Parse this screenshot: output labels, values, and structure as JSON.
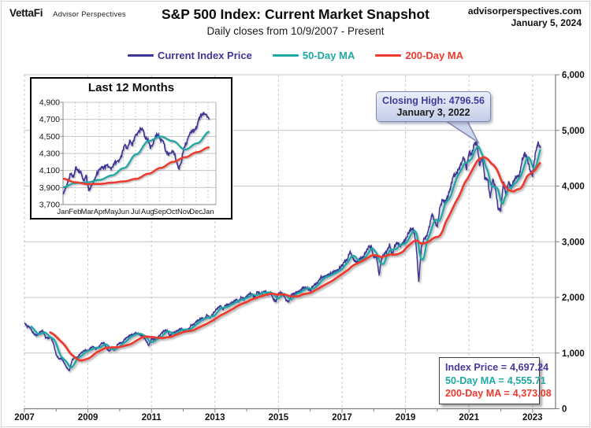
{
  "header": {
    "logo": "VettaFi",
    "logo_sub": "Advisor Perspectives",
    "site": "advisorperspectives.com",
    "date": "January 5, 2024",
    "title": "S&P 500 Index: Current Market Snapshot",
    "subtitle": "Daily closes from 10/9/2007 - Present"
  },
  "legend": {
    "items": [
      {
        "label": "Current Index Price",
        "color": "#3e3597"
      },
      {
        "label": "50-Day MA",
        "color": "#1fa8a4"
      },
      {
        "label": "200-Day MA",
        "color": "#ee3a2e"
      }
    ]
  },
  "annotation": {
    "line1": "Closing High: 4796.56",
    "line2": "January 3, 2022"
  },
  "stats_box": {
    "rows": [
      {
        "label": "Index Price =",
        "value": "4,697.24",
        "color": "#46399e"
      },
      {
        "label": "50-Day MA =",
        "value": "4,555.71",
        "color": "#1fa8a4"
      },
      {
        "label": "200-Day MA =",
        "value": "4,373.08",
        "color": "#ee3a2e"
      }
    ]
  },
  "chart_data": [
    {
      "id": "main",
      "type": "line",
      "title": "S&P 500 Index: Current Market Snapshot",
      "subtitle": "Daily closes from 10/9/2007 - Present",
      "x_start": 2007.75,
      "x_step_years": 0.0833333,
      "x_axis": {
        "tick_labels": [
          "2007",
          "2009",
          "2011",
          "2013",
          "2015",
          "2017",
          "2019",
          "2021",
          "2023"
        ]
      },
      "y_axis": {
        "min": 0,
        "max": 6000,
        "tick_labels": [
          "0",
          "1,000",
          "2,000",
          "3,000",
          "4,000",
          "5,000",
          "6,000"
        ]
      },
      "grid": {
        "horizontal": "solid",
        "vertical": "dashed"
      },
      "series": [
        {
          "name": "Current Index Price",
          "color": "#3e3597",
          "cadence": "monthly-close",
          "values": [
            1549,
            1481,
            1468,
            1379,
            1331,
            1323,
            1386,
            1400,
            1280,
            1267,
            1283,
            1166,
            969,
            896,
            903,
            826,
            735,
            683,
            873,
            919,
            919,
            987,
            1021,
            1057,
            1036,
            1096,
            1115,
            1074,
            1104,
            1169,
            1187,
            1089,
            1031,
            1102,
            1049,
            1141,
            1183,
            1181,
            1258,
            1286,
            1327,
            1326,
            1364,
            1345,
            1321,
            1292,
            1219,
            1131,
            1253,
            1247,
            1258,
            1312,
            1366,
            1408,
            1398,
            1310,
            1362,
            1379,
            1407,
            1441,
            1412,
            1416,
            1426,
            1498,
            1515,
            1569,
            1598,
            1631,
            1606,
            1686,
            1633,
            1682,
            1757,
            1806,
            1848,
            1783,
            1859,
            1872,
            1884,
            1924,
            1960,
            1931,
            2003,
            1972,
            2018,
            2068,
            2059,
            1995,
            2105,
            2068,
            2086,
            2107,
            2063,
            2104,
            1972,
            1920,
            2079,
            2080,
            2044,
            1940,
            1932,
            2060,
            2065,
            2097,
            2099,
            2174,
            2171,
            2168,
            2126,
            2199,
            2239,
            2279,
            2364,
            2363,
            2384,
            2412,
            2423,
            2470,
            2472,
            2519,
            2575,
            2648,
            2674,
            2824,
            2714,
            2641,
            2648,
            2705,
            2718,
            2816,
            2902,
            2914,
            2712,
            2760,
            2400,
            2704,
            2784,
            2834,
            2946,
            2752,
            2942,
            2980,
            2926,
            2977,
            3038,
            3141,
            3231,
            3226,
            2954,
            2280,
            2912,
            3044,
            3100,
            3271,
            3500,
            3363,
            3270,
            3622,
            3756,
            3714,
            3811,
            3973,
            4181,
            4204,
            4298,
            4395,
            4523,
            4308,
            4605,
            4567,
            4766,
            4780,
            4374,
            4530,
            4132,
            4132,
            3785,
            4130,
            3955,
            3590,
            3580,
            4080,
            3840,
            4077,
            3970,
            4109,
            4169,
            4180,
            4450,
            4589,
            4508,
            4288,
            4194,
            4568,
            4770,
            4697
          ]
        },
        {
          "name": "50-Day MA",
          "color": "#1fa8a4",
          "derived": "rolling_mean",
          "window_years": 0.2,
          "end_value": 4555.71
        },
        {
          "name": "200-Day MA",
          "color": "#ee3a2e",
          "derived": "rolling_mean",
          "window_years": 0.79,
          "end_value": 4373.08
        }
      ],
      "annotations": [
        {
          "x": 2022.005,
          "y": 4796.56,
          "text": "Closing High: 4796.56 / January 3, 2022"
        }
      ],
      "end_values": {
        "index_price": 4697.24,
        "ma_50_day": 4555.71,
        "ma_200_day": 4373.08
      }
    },
    {
      "id": "inset",
      "type": "line",
      "title": "Last 12 Months",
      "x_start": 2023.0,
      "x_end": 2024.01,
      "x_axis": {
        "tick_labels": [
          "Jan",
          "Feb",
          "Mar",
          "Apr",
          "May",
          "Jun",
          "Jul",
          "Aug",
          "Sep",
          "Oct",
          "Nov",
          "Dec",
          "Jan"
        ]
      },
      "y_axis": {
        "min": 3700,
        "max": 4900,
        "tick_labels": [
          "3,700",
          "3,900",
          "4,100",
          "4,300",
          "4,500",
          "4,700",
          "4,900"
        ]
      },
      "series": [
        {
          "name": "Current Index Price",
          "color": "#3e3597",
          "cadence": "weekly",
          "values": [
            3824,
            3892,
            3973,
            4071,
            4017,
            4136,
            4090,
            4079,
            3970,
            4046,
            3862,
            3917,
            3971,
            4051,
            4105,
            4138,
            4134,
            4169,
            4136,
            4124,
            4192,
            4205,
            4222,
            4299,
            4410,
            4348,
            4450,
            4399,
            4505,
            4536,
            4582,
            4589,
            4478,
            4464,
            4370,
            4406,
            4508,
            4516,
            4457,
            4450,
            4320,
            4288,
            4309,
            4328,
            4224,
            4117,
            4194,
            4365,
            4415,
            4514,
            4559,
            4568,
            4604,
            4719,
            4754,
            4770,
            4743,
            4697
          ]
        },
        {
          "name": "50-Day MA",
          "color": "#1fa8a4",
          "cadence": "monthly",
          "values": [
            3905,
            3952,
            3962,
            3990,
            4042,
            4129,
            4290,
            4445,
            4499,
            4445,
            4345,
            4420,
            4556
          ]
        },
        {
          "name": "200-Day MA",
          "color": "#ee3a2e",
          "cadence": "monthly",
          "values": [
            4003,
            3962,
            3940,
            3942,
            3958,
            3972,
            4002,
            4062,
            4130,
            4200,
            4255,
            4315,
            4373
          ]
        }
      ]
    }
  ]
}
